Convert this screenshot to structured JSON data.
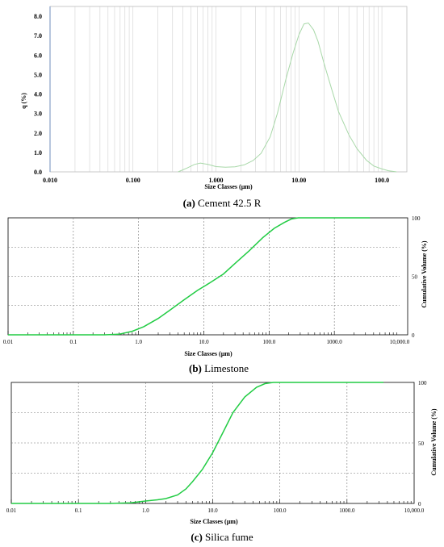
{
  "chart_data": [
    {
      "type": "area",
      "caption_letter": "(a)",
      "caption_text": " Cement 42.5 R",
      "xlabel": "Size Classes (µm)",
      "ylabel": "q (%)",
      "xscale": "log",
      "xlim": [
        0.01,
        200
      ],
      "ylim": [
        0,
        8.5
      ],
      "x_ticks": [
        0.01,
        0.1,
        1,
        10,
        100
      ],
      "x_tick_labels": [
        "0.010",
        "0.100",
        "1.000",
        "10.00",
        "100.0"
      ],
      "y_ticks": [
        0,
        1,
        2,
        3,
        4,
        5,
        6,
        7,
        8
      ],
      "y_tick_labels": [
        "0.0",
        "1.0",
        "2.0",
        "3.0",
        "4.0",
        "5.0",
        "6.0",
        "7.0",
        "8.0"
      ],
      "grid": "dense vertical log gridlines",
      "line_color": "#a8d8a8",
      "x": [
        0.35,
        0.45,
        0.55,
        0.65,
        0.8,
        1.0,
        1.3,
        1.7,
        2.2,
        2.8,
        3.5,
        4.5,
        5.5,
        7.0,
        8.5,
        10,
        11.5,
        13,
        15,
        17,
        20,
        25,
        30,
        40,
        50,
        65,
        80,
        100,
        120,
        150
      ],
      "y": [
        0.0,
        0.2,
        0.38,
        0.45,
        0.38,
        0.27,
        0.24,
        0.26,
        0.36,
        0.58,
        0.95,
        1.8,
        3.0,
        4.8,
        6.1,
        7.05,
        7.6,
        7.65,
        7.3,
        6.7,
        5.6,
        4.2,
        3.1,
        1.9,
        1.2,
        0.6,
        0.3,
        0.15,
        0.06,
        0.0
      ]
    },
    {
      "type": "line",
      "caption_letter": "(b)",
      "caption_text": " Limestone",
      "xlabel": "Size Classes (µm)",
      "ylabel": "Cumulative Volume (%)",
      "xscale": "log",
      "xlim": [
        0.01,
        10000
      ],
      "ylim": [
        0,
        100
      ],
      "x_ticks": [
        0.01,
        0.1,
        1,
        10,
        100,
        1000,
        10000
      ],
      "x_tick_labels": [
        "0.01",
        "0.1",
        "1.0",
        "10.0",
        "100.0",
        "1000.0",
        "10,000.0"
      ],
      "y_ticks": [
        0,
        50,
        100
      ],
      "y_tick_labels": [
        "0",
        "50",
        "100"
      ],
      "grid": "dashed major gridlines",
      "line_color": "#22cc44",
      "x": [
        0.01,
        0.1,
        0.3,
        0.5,
        0.8,
        1.2,
        2,
        3,
        5,
        8,
        12,
        20,
        30,
        50,
        80,
        120,
        170,
        220,
        280,
        400,
        1000,
        3500
      ],
      "y": [
        0,
        0,
        0,
        0.5,
        3,
        7,
        14,
        21,
        30,
        38,
        44,
        52,
        61,
        72,
        83,
        91,
        96,
        99,
        100,
        100,
        100,
        100
      ]
    },
    {
      "type": "line",
      "caption_letter": "(c)",
      "caption_text": " Silica fume",
      "xlabel": "Size Classes (µm)",
      "ylabel": "Cumulative Volume (%)",
      "xscale": "log",
      "xlim": [
        0.01,
        10000
      ],
      "ylim": [
        0,
        100
      ],
      "x_ticks": [
        0.01,
        0.1,
        1,
        10,
        100,
        1000,
        10000
      ],
      "x_tick_labels": [
        "0.01",
        "0.1",
        "1.0",
        "10.0",
        "100.0",
        "1000.0",
        "10,000.0"
      ],
      "y_ticks": [
        0,
        50,
        100
      ],
      "y_tick_labels": [
        "0",
        "50",
        "100"
      ],
      "grid": "dashed major gridlines",
      "line_color": "#22cc44",
      "x": [
        0.01,
        0.1,
        0.3,
        0.6,
        1.0,
        1.5,
        2,
        3,
        4,
        5,
        7,
        10,
        14,
        20,
        30,
        45,
        60,
        80,
        100,
        300,
        1000,
        3500
      ],
      "y": [
        0,
        0,
        0,
        0.5,
        2,
        3,
        4,
        7,
        12,
        18,
        28,
        42,
        58,
        75,
        88,
        96,
        99,
        100,
        100,
        100,
        100,
        100
      ]
    }
  ]
}
